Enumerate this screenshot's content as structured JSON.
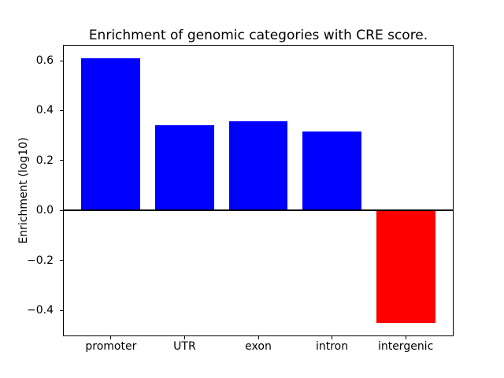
{
  "chart_data": {
    "type": "bar",
    "title": "Enrichment of genomic categories with CRE score.",
    "xlabel": "",
    "ylabel": "Enrichment (log10)",
    "categories": [
      "promoter",
      "UTR",
      "exon",
      "intron",
      "intergenic"
    ],
    "values": [
      0.609,
      0.343,
      0.357,
      0.315,
      -0.451
    ],
    "positive_color": "#0000ff",
    "negative_color": "#ff0000",
    "axis_color": "#000000",
    "background_color": "#ffffff",
    "ylim": [
      -0.5,
      0.66
    ],
    "xlim": [
      -0.64,
      4.64
    ],
    "bar_width": 0.8,
    "yticks": [
      0.6,
      0.4,
      0.2,
      0.0,
      -0.2,
      -0.4
    ],
    "ytick_labels": [
      "0.6",
      "0.4",
      "0.2",
      "0.0",
      "−0.2",
      "−0.4"
    ],
    "zero_line": true,
    "grid": false,
    "legend": false
  }
}
